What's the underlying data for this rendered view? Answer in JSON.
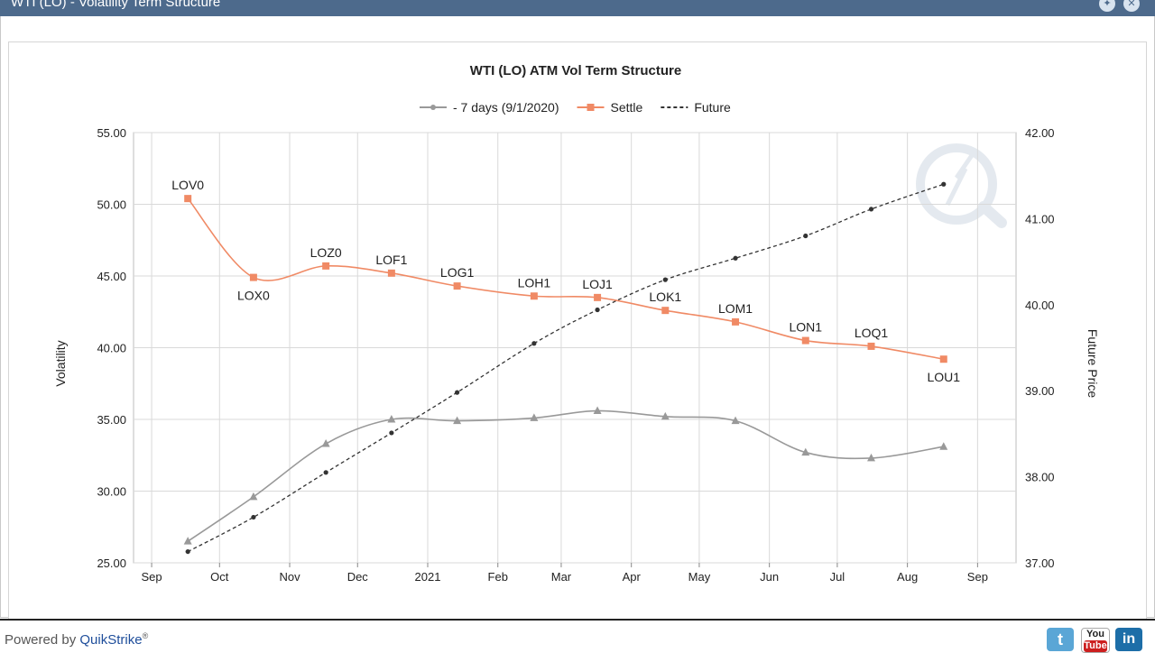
{
  "window": {
    "title": "WTI (LO) - Volatility Term Structure"
  },
  "footer": {
    "powered_label": "Powered by",
    "brand": "QuikStrike",
    "registered": "®"
  },
  "colors": {
    "titlebar": "#4d6a8c",
    "seven_days": "#999999",
    "settle": "#f08a65",
    "future": "#333333"
  },
  "chart_data": {
    "type": "line",
    "title": "WTI (LO) ATM Vol Term Structure",
    "ylabel": "Volatility",
    "y2label": "Future Price",
    "ylim": [
      25,
      55
    ],
    "y2lim": [
      37,
      42
    ],
    "y_ticks": [
      "25.00",
      "30.00",
      "35.00",
      "40.00",
      "45.00",
      "50.00",
      "55.00"
    ],
    "y2_ticks": [
      "37.00",
      "38.00",
      "39.00",
      "40.00",
      "41.00",
      "42.00"
    ],
    "x_ticks": [
      "Sep",
      "Oct",
      "Nov",
      "Dec",
      "2021",
      "Feb",
      "Mar",
      "Apr",
      "May",
      "Jun",
      "Jul",
      "Aug",
      "Sep"
    ],
    "x_tick_dates": [
      "2020-09-01",
      "2020-10-01",
      "2020-11-01",
      "2020-12-01",
      "2021-01-01",
      "2021-02-01",
      "2021-03-01",
      "2021-04-01",
      "2021-05-01",
      "2021-06-01",
      "2021-07-01",
      "2021-08-01",
      "2021-09-01"
    ],
    "x_range": [
      "2020-08-24",
      "2021-09-18"
    ],
    "legend_position": "top-center",
    "grid": true,
    "x": [
      "2020-09-17",
      "2020-10-16",
      "2020-11-17",
      "2020-12-16",
      "2021-01-14",
      "2021-02-17",
      "2021-03-17",
      "2021-04-16",
      "2021-05-17",
      "2021-06-17",
      "2021-07-16",
      "2021-08-17"
    ],
    "labels": [
      "LOV0",
      "LOX0",
      "LOZ0",
      "LOF1",
      "LOG1",
      "LOH1",
      "LOJ1",
      "LOK1",
      "LOM1",
      "LON1",
      "LOQ1",
      "LOU1"
    ],
    "series": [
      {
        "name": "- 7 days (9/1/2020)",
        "axis": "left",
        "values": [
          26.5,
          29.6,
          33.3,
          35.0,
          34.9,
          35.1,
          35.6,
          35.2,
          34.9,
          32.7,
          32.3,
          33.1
        ]
      },
      {
        "name": "Settle",
        "axis": "left",
        "values": [
          50.4,
          44.9,
          45.7,
          45.2,
          44.3,
          43.6,
          43.5,
          42.6,
          41.8,
          40.5,
          40.1,
          39.2
        ]
      },
      {
        "name": "Future",
        "axis": "right",
        "values": [
          37.13,
          37.53,
          38.05,
          38.51,
          38.98,
          39.55,
          39.94,
          40.29,
          40.54,
          40.8,
          41.11,
          41.4
        ]
      }
    ]
  }
}
